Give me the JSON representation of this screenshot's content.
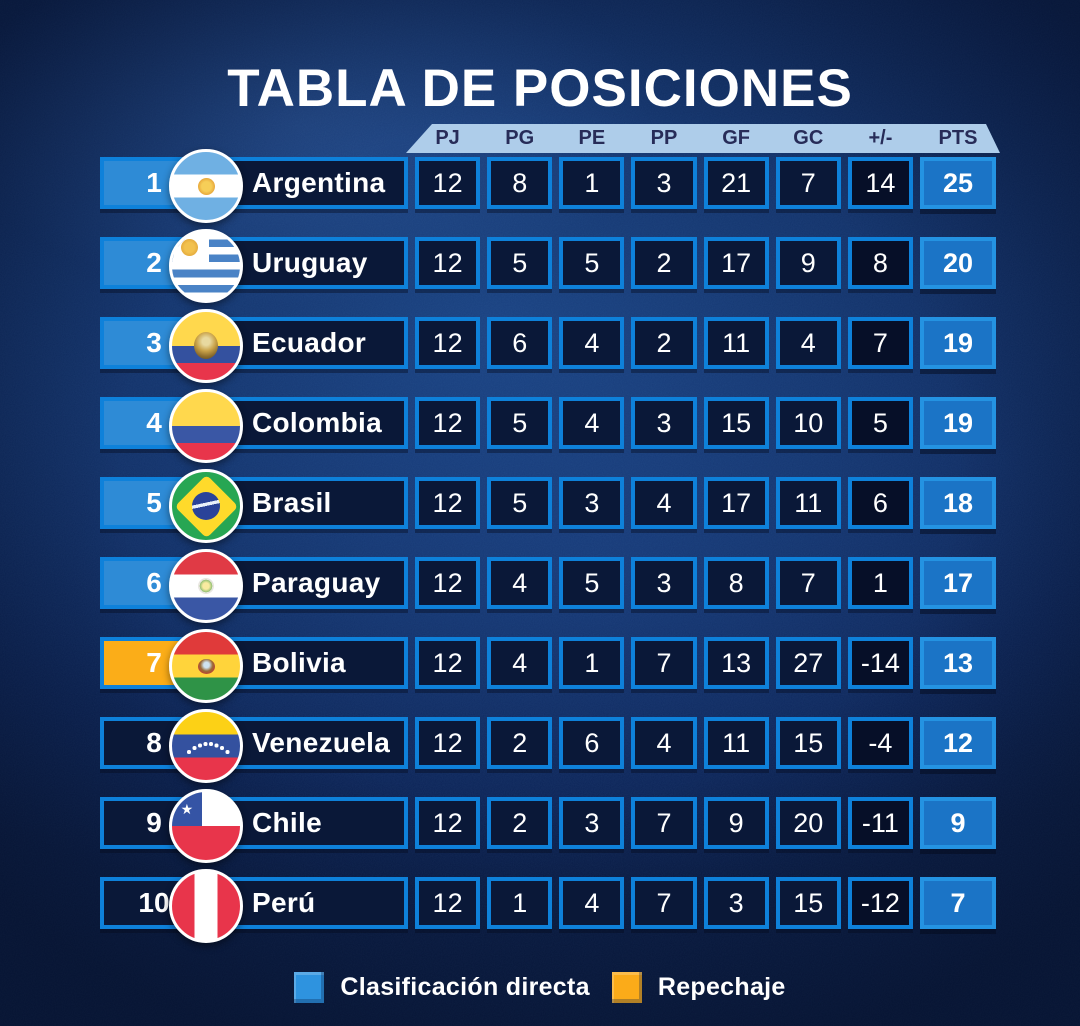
{
  "chart_data": {
    "type": "table",
    "title": "TABLA DE POSICIONES",
    "columns": [
      "PJ",
      "PG",
      "PE",
      "PP",
      "GF",
      "GC",
      "+/-",
      "PTS"
    ],
    "teams": [
      {
        "pos": "1",
        "name": "Argentina",
        "flag": "argentina",
        "status": "direct",
        "pj": "12",
        "pg": "8",
        "pe": "1",
        "pp": "3",
        "gf": "21",
        "gc": "7",
        "diff": "14",
        "pts": "25"
      },
      {
        "pos": "2",
        "name": "Uruguay",
        "flag": "uruguay",
        "status": "direct",
        "pj": "12",
        "pg": "5",
        "pe": "5",
        "pp": "2",
        "gf": "17",
        "gc": "9",
        "diff": "8",
        "pts": "20"
      },
      {
        "pos": "3",
        "name": "Ecuador",
        "flag": "ecuador",
        "status": "direct",
        "pj": "12",
        "pg": "6",
        "pe": "4",
        "pp": "2",
        "gf": "11",
        "gc": "4",
        "diff": "7",
        "pts": "19"
      },
      {
        "pos": "4",
        "name": "Colombia",
        "flag": "colombia",
        "status": "direct",
        "pj": "12",
        "pg": "5",
        "pe": "4",
        "pp": "3",
        "gf": "15",
        "gc": "10",
        "diff": "5",
        "pts": "19"
      },
      {
        "pos": "5",
        "name": "Brasil",
        "flag": "brasil",
        "status": "direct",
        "pj": "12",
        "pg": "5",
        "pe": "3",
        "pp": "4",
        "gf": "17",
        "gc": "11",
        "diff": "6",
        "pts": "18"
      },
      {
        "pos": "6",
        "name": "Paraguay",
        "flag": "paraguay",
        "status": "direct",
        "pj": "12",
        "pg": "4",
        "pe": "5",
        "pp": "3",
        "gf": "8",
        "gc": "7",
        "diff": "1",
        "pts": "17"
      },
      {
        "pos": "7",
        "name": "Bolivia",
        "flag": "bolivia",
        "status": "repechaje",
        "pj": "12",
        "pg": "4",
        "pe": "1",
        "pp": "7",
        "gf": "13",
        "gc": "27",
        "diff": "-14",
        "pts": "13"
      },
      {
        "pos": "8",
        "name": "Venezuela",
        "flag": "venezuela",
        "status": "none",
        "pj": "12",
        "pg": "2",
        "pe": "6",
        "pp": "4",
        "gf": "11",
        "gc": "15",
        "diff": "-4",
        "pts": "12"
      },
      {
        "pos": "9",
        "name": "Chile",
        "flag": "chile",
        "status": "none",
        "pj": "12",
        "pg": "2",
        "pe": "3",
        "pp": "7",
        "gf": "9",
        "gc": "20",
        "diff": "-11",
        "pts": "9"
      },
      {
        "pos": "10",
        "name": "Perú",
        "flag": "peru",
        "status": "none",
        "pj": "12",
        "pg": "1",
        "pe": "4",
        "pp": "7",
        "gf": "3",
        "gc": "15",
        "diff": "-12",
        "pts": "7"
      }
    ],
    "legend": [
      {
        "label": "Clasificación directa",
        "color": "#2E93DF"
      },
      {
        "label": "Repechaje",
        "color": "#FBAB19"
      }
    ],
    "colors": {
      "direct_blue": "#2E8BD6",
      "repechaje_orange": "#FBAD18",
      "border_blue": "#0E81DA",
      "cell_navy": "#0A1838",
      "pts_blue": "#1B74C6",
      "header_light_blue": "#AECDEA",
      "header_text": "#272C58"
    }
  }
}
